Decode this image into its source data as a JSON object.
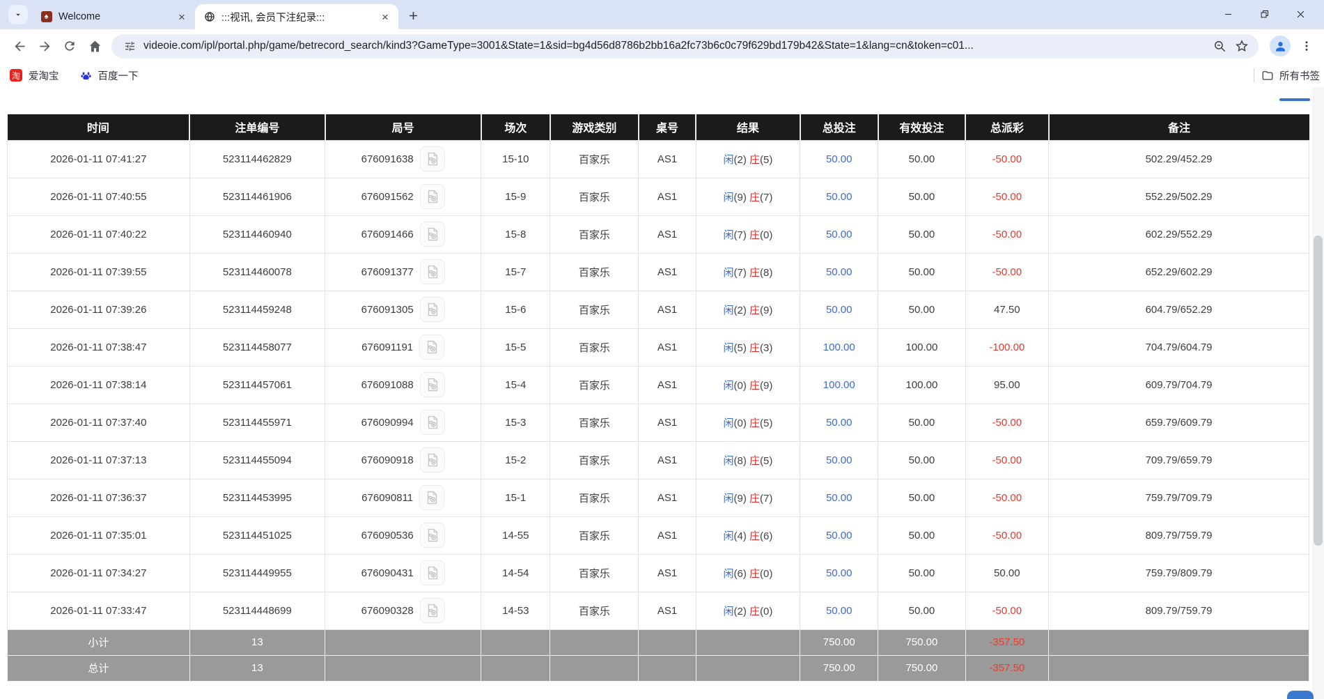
{
  "browser": {
    "tabs": [
      {
        "title": "Welcome"
      },
      {
        "title": ":::视讯, 会员下注纪录:::"
      }
    ],
    "url": "videoie.com/ipl/portal.php/game/betrecord_search/kind3?GameType=3001&State=1&sid=bg4d56d8786b2bb16a2fc73b6c0c79f629bd179b42&State=1&lang=cn&token=c01...",
    "bookmarks": {
      "items": [
        {
          "label": "爱淘宝"
        },
        {
          "label": "百度一下"
        }
      ],
      "all_bookmarks_label": "所有书签"
    }
  },
  "table": {
    "headers": [
      "时间",
      "注单编号",
      "局号",
      "场次",
      "游戏类别",
      "桌号",
      "结果",
      "总投注",
      "有效投注",
      "总派彩",
      "备注"
    ],
    "rows": [
      {
        "time": "2026-01-11 07:41:27",
        "bet_id": "523114462829",
        "round": "676091638",
        "session": "15-10",
        "game": "百家乐",
        "table": "AS1",
        "player": "闲",
        "player_score": "(2)",
        "banker": "庄",
        "banker_score": "(5)",
        "total_bet": "50.00",
        "valid_bet": "50.00",
        "payout": "-50.00",
        "note": "502.29/452.29"
      },
      {
        "time": "2026-01-11 07:40:55",
        "bet_id": "523114461906",
        "round": "676091562",
        "session": "15-9",
        "game": "百家乐",
        "table": "AS1",
        "player": "闲",
        "player_score": "(9)",
        "banker": "庄",
        "banker_score": "(7)",
        "total_bet": "50.00",
        "valid_bet": "50.00",
        "payout": "-50.00",
        "note": "552.29/502.29"
      },
      {
        "time": "2026-01-11 07:40:22",
        "bet_id": "523114460940",
        "round": "676091466",
        "session": "15-8",
        "game": "百家乐",
        "table": "AS1",
        "player": "闲",
        "player_score": "(7)",
        "banker": "庄",
        "banker_score": "(0)",
        "total_bet": "50.00",
        "valid_bet": "50.00",
        "payout": "-50.00",
        "note": "602.29/552.29"
      },
      {
        "time": "2026-01-11 07:39:55",
        "bet_id": "523114460078",
        "round": "676091377",
        "session": "15-7",
        "game": "百家乐",
        "table": "AS1",
        "player": "闲",
        "player_score": "(7)",
        "banker": "庄",
        "banker_score": "(8)",
        "total_bet": "50.00",
        "valid_bet": "50.00",
        "payout": "-50.00",
        "note": "652.29/602.29"
      },
      {
        "time": "2026-01-11 07:39:26",
        "bet_id": "523114459248",
        "round": "676091305",
        "session": "15-6",
        "game": "百家乐",
        "table": "AS1",
        "player": "闲",
        "player_score": "(2)",
        "banker": "庄",
        "banker_score": "(9)",
        "total_bet": "50.00",
        "valid_bet": "50.00",
        "payout": "47.50",
        "note": "604.79/652.29"
      },
      {
        "time": "2026-01-11 07:38:47",
        "bet_id": "523114458077",
        "round": "676091191",
        "session": "15-5",
        "game": "百家乐",
        "table": "AS1",
        "player": "闲",
        "player_score": "(5)",
        "banker": "庄",
        "banker_score": "(3)",
        "total_bet": "100.00",
        "valid_bet": "100.00",
        "payout": "-100.00",
        "note": "704.79/604.79"
      },
      {
        "time": "2026-01-11 07:38:14",
        "bet_id": "523114457061",
        "round": "676091088",
        "session": "15-4",
        "game": "百家乐",
        "table": "AS1",
        "player": "闲",
        "player_score": "(0)",
        "banker": "庄",
        "banker_score": "(9)",
        "total_bet": "100.00",
        "valid_bet": "100.00",
        "payout": "95.00",
        "note": "609.79/704.79"
      },
      {
        "time": "2026-01-11 07:37:40",
        "bet_id": "523114455971",
        "round": "676090994",
        "session": "15-3",
        "game": "百家乐",
        "table": "AS1",
        "player": "闲",
        "player_score": "(0)",
        "banker": "庄",
        "banker_score": "(5)",
        "total_bet": "50.00",
        "valid_bet": "50.00",
        "payout": "-50.00",
        "note": "659.79/609.79"
      },
      {
        "time": "2026-01-11 07:37:13",
        "bet_id": "523114455094",
        "round": "676090918",
        "session": "15-2",
        "game": "百家乐",
        "table": "AS1",
        "player": "闲",
        "player_score": "(8)",
        "banker": "庄",
        "banker_score": "(5)",
        "total_bet": "50.00",
        "valid_bet": "50.00",
        "payout": "-50.00",
        "note": "709.79/659.79"
      },
      {
        "time": "2026-01-11 07:36:37",
        "bet_id": "523114453995",
        "round": "676090811",
        "session": "15-1",
        "game": "百家乐",
        "table": "AS1",
        "player": "闲",
        "player_score": "(9)",
        "banker": "庄",
        "banker_score": "(7)",
        "total_bet": "50.00",
        "valid_bet": "50.00",
        "payout": "-50.00",
        "note": "759.79/709.79"
      },
      {
        "time": "2026-01-11 07:35:01",
        "bet_id": "523114451025",
        "round": "676090536",
        "session": "14-55",
        "game": "百家乐",
        "table": "AS1",
        "player": "闲",
        "player_score": "(4)",
        "banker": "庄",
        "banker_score": "(6)",
        "total_bet": "50.00",
        "valid_bet": "50.00",
        "payout": "-50.00",
        "note": "809.79/759.79"
      },
      {
        "time": "2026-01-11 07:34:27",
        "bet_id": "523114449955",
        "round": "676090431",
        "session": "14-54",
        "game": "百家乐",
        "table": "AS1",
        "player": "闲",
        "player_score": "(6)",
        "banker": "庄",
        "banker_score": "(0)",
        "total_bet": "50.00",
        "valid_bet": "50.00",
        "payout": "50.00",
        "note": "759.79/809.79"
      },
      {
        "time": "2026-01-11 07:33:47",
        "bet_id": "523114448699",
        "round": "676090328",
        "session": "14-53",
        "game": "百家乐",
        "table": "AS1",
        "player": "闲",
        "player_score": "(2)",
        "banker": "庄",
        "banker_score": "(0)",
        "total_bet": "50.00",
        "valid_bet": "50.00",
        "payout": "-50.00",
        "note": "809.79/759.79"
      }
    ],
    "subtotal": {
      "label": "小计",
      "count": "13",
      "total_bet": "750.00",
      "valid_bet": "750.00",
      "payout": "-357.50"
    },
    "total": {
      "label": "总计",
      "count": "13",
      "total_bet": "750.00",
      "valid_bet": "750.00",
      "payout": "-357.50"
    }
  },
  "colors": {
    "accent_blue": "#3c6ad8",
    "banker_red": "#d9342b",
    "negative_red": "#e8392b",
    "header_bg": "#1b1b1b",
    "footer_bg": "#9a9a9a",
    "tabstrip_bg": "#dae3f5"
  }
}
